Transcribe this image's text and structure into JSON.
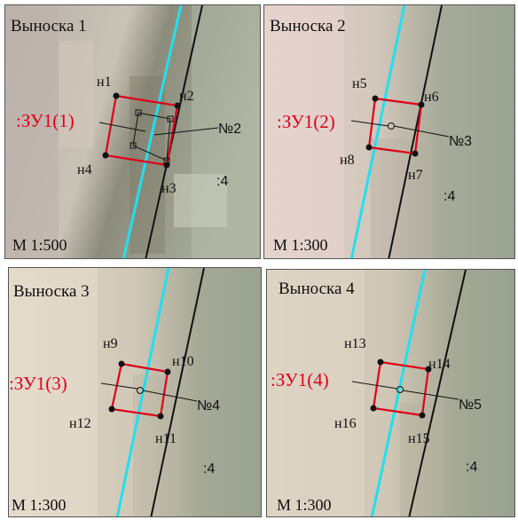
{
  "colors": {
    "parcel_outline": "#e0001a",
    "boundary_line": "#111111",
    "road_line": "#20e0f0",
    "label_red": "#e0001a",
    "label_dark": "#111111"
  },
  "panels": [
    {
      "title": "Выноска 1",
      "scale": "М 1:500",
      "parcel_label": ":ЗУ1(1)",
      "number_label": "№2",
      "area_label": ":4",
      "points": [
        "н1",
        "н2",
        "н3",
        "н4"
      ]
    },
    {
      "title": "Выноска 2",
      "scale": "М 1:300",
      "parcel_label": ":ЗУ1(2)",
      "number_label": "№3",
      "area_label": ":4",
      "points": [
        "н5",
        "н6",
        "н7",
        "н8"
      ]
    },
    {
      "title": "Выноска 3",
      "scale": "М 1:300",
      "parcel_label": ":ЗУ1(3)",
      "number_label": "№4",
      "area_label": ":4",
      "points": [
        "н9",
        "н10",
        "н11",
        "н12"
      ]
    },
    {
      "title": "Выноска 4",
      "scale": "М 1:300",
      "parcel_label": ":ЗУ1(4)",
      "number_label": "№5",
      "area_label": ":4",
      "points": [
        "н13",
        "н14",
        "н15",
        "н16"
      ]
    }
  ]
}
